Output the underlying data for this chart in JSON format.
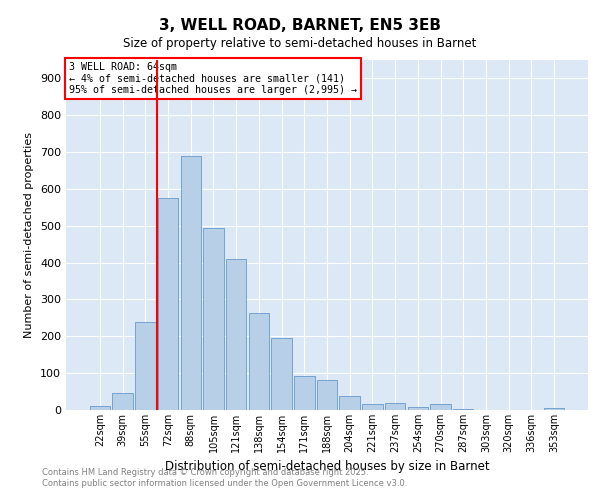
{
  "title": "3, WELL ROAD, BARNET, EN5 3EB",
  "subtitle": "Size of property relative to semi-detached houses in Barnet",
  "xlabel": "Distribution of semi-detached houses by size in Barnet",
  "ylabel": "Number of semi-detached properties",
  "bar_labels": [
    "22sqm",
    "39sqm",
    "55sqm",
    "72sqm",
    "88sqm",
    "105sqm",
    "121sqm",
    "138sqm",
    "154sqm",
    "171sqm",
    "188sqm",
    "204sqm",
    "221sqm",
    "237sqm",
    "254sqm",
    "270sqm",
    "287sqm",
    "303sqm",
    "320sqm",
    "336sqm",
    "353sqm"
  ],
  "bar_values": [
    10,
    45,
    240,
    575,
    690,
    493,
    410,
    263,
    195,
    93,
    82,
    38,
    15,
    20,
    8,
    15,
    3,
    0,
    0,
    0,
    5
  ],
  "bar_color": "#b8cfe8",
  "bar_edgecolor": "#6699cc",
  "background_color": "#dce8f5",
  "vline_x_index": 2.5,
  "vline_color": "red",
  "annotation_title": "3 WELL ROAD: 64sqm",
  "annotation_line1": "← 4% of semi-detached houses are smaller (141)",
  "annotation_line2": "95% of semi-detached houses are larger (2,995) →",
  "annotation_box_color": "red",
  "ylim": [
    0,
    950
  ],
  "yticks": [
    0,
    100,
    200,
    300,
    400,
    500,
    600,
    700,
    800,
    900
  ],
  "footer_line1": "Contains HM Land Registry data © Crown copyright and database right 2025.",
  "footer_line2": "Contains public sector information licensed under the Open Government Licence v3.0."
}
